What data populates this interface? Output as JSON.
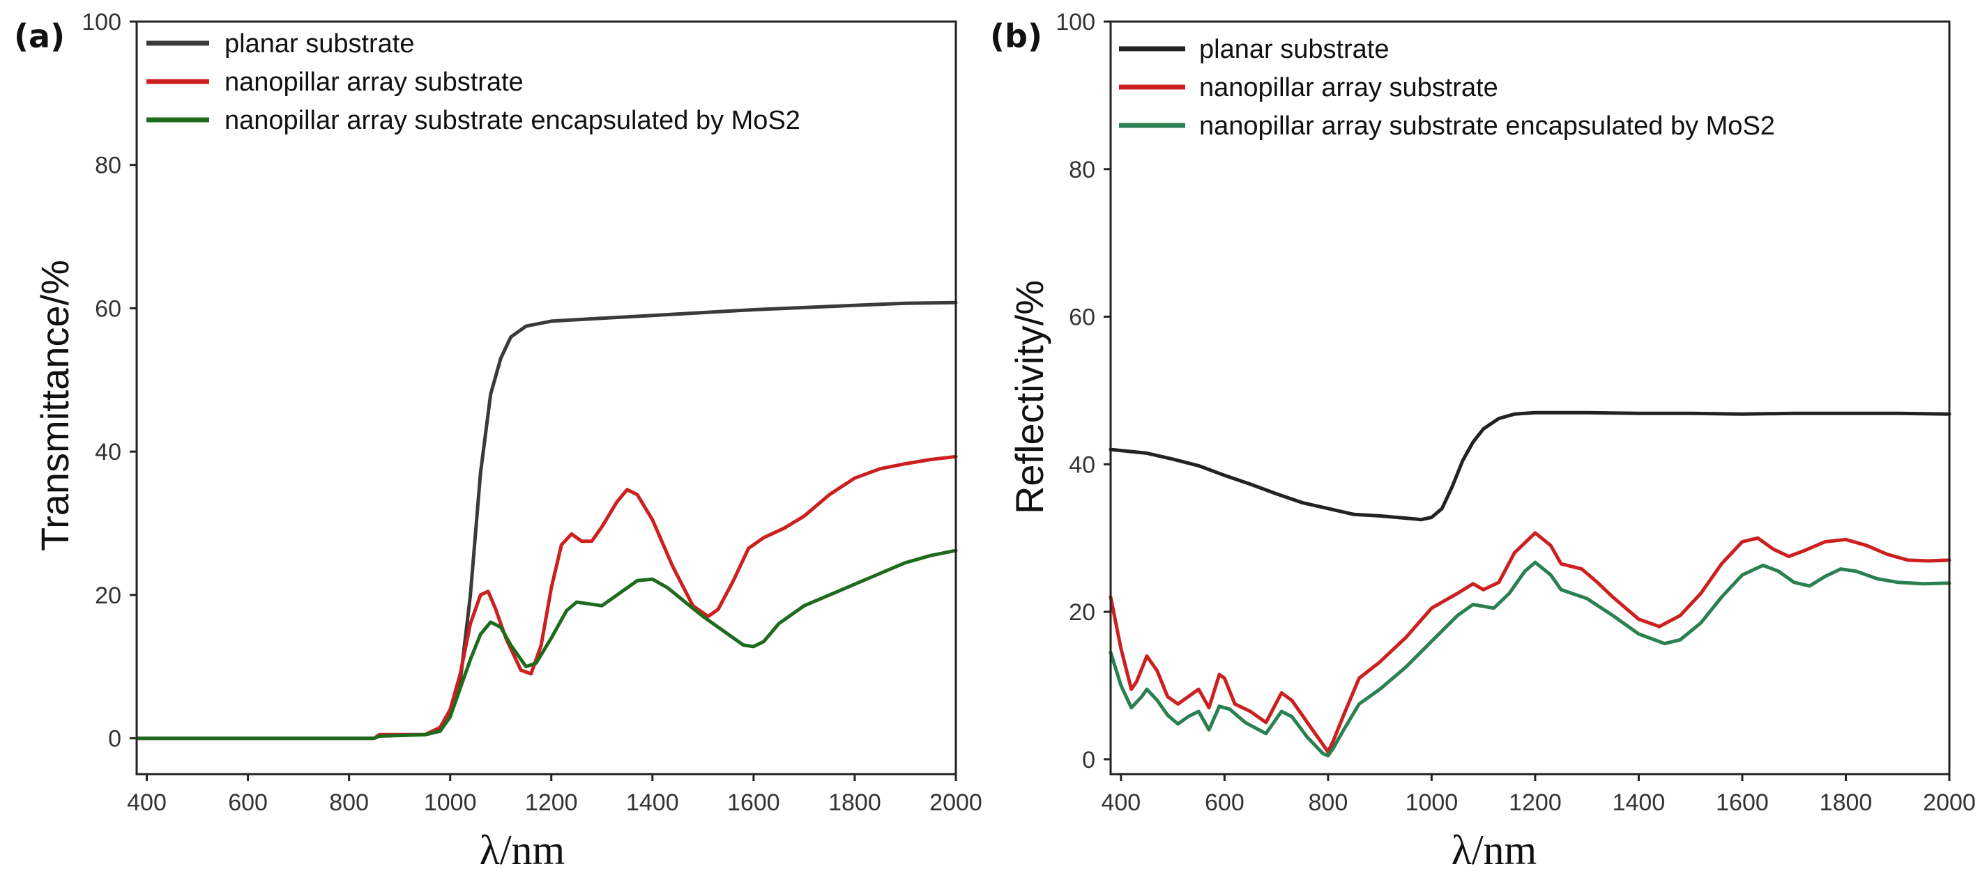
{
  "chart_data": [
    {
      "panel": "(a)",
      "type": "line",
      "xlabel": "λ/nm",
      "ylabel": "Transmittance/%",
      "xlim": [
        380,
        2000
      ],
      "ylim": [
        -5,
        100
      ],
      "xticks": [
        400,
        600,
        800,
        1000,
        1200,
        1400,
        1600,
        1800,
        2000
      ],
      "yticks": [
        0,
        20,
        40,
        60,
        80,
        100
      ],
      "legend_position": "top-left",
      "series": [
        {
          "name": "planar substrate",
          "color": "#3a3a3a",
          "points": [
            [
              380,
              0
            ],
            [
              850,
              0
            ],
            [
              860,
              0.5
            ],
            [
              950,
              0.5
            ],
            [
              980,
              1
            ],
            [
              1000,
              3
            ],
            [
              1020,
              8
            ],
            [
              1040,
              20
            ],
            [
              1060,
              37
            ],
            [
              1080,
              48
            ],
            [
              1100,
              53
            ],
            [
              1120,
              56
            ],
            [
              1150,
              57.5
            ],
            [
              1200,
              58.2
            ],
            [
              1300,
              58.6
            ],
            [
              1400,
              59
            ],
            [
              1500,
              59.4
            ],
            [
              1600,
              59.8
            ],
            [
              1700,
              60.1
            ],
            [
              1800,
              60.4
            ],
            [
              1900,
              60.7
            ],
            [
              2000,
              60.8
            ]
          ]
        },
        {
          "name": "nanopillar array substrate",
          "color": "#cc1f1f",
          "points": [
            [
              380,
              0
            ],
            [
              850,
              0
            ],
            [
              860,
              0.5
            ],
            [
              950,
              0.5
            ],
            [
              980,
              1.5
            ],
            [
              1000,
              4
            ],
            [
              1020,
              9
            ],
            [
              1040,
              16
            ],
            [
              1060,
              20
            ],
            [
              1075,
              20.5
            ],
            [
              1090,
              18
            ],
            [
              1110,
              14
            ],
            [
              1140,
              9.5
            ],
            [
              1160,
              9
            ],
            [
              1180,
              13
            ],
            [
              1200,
              21
            ],
            [
              1220,
              27
            ],
            [
              1240,
              28.5
            ],
            [
              1260,
              27.5
            ],
            [
              1280,
              27.5
            ],
            [
              1300,
              29.5
            ],
            [
              1330,
              33
            ],
            [
              1350,
              34.7
            ],
            [
              1370,
              34
            ],
            [
              1400,
              30.5
            ],
            [
              1440,
              24
            ],
            [
              1480,
              18.5
            ],
            [
              1510,
              17
            ],
            [
              1530,
              18
            ],
            [
              1560,
              22
            ],
            [
              1590,
              26.5
            ],
            [
              1620,
              28
            ],
            [
              1660,
              29.3
            ],
            [
              1700,
              31
            ],
            [
              1750,
              34
            ],
            [
              1800,
              36.3
            ],
            [
              1850,
              37.6
            ],
            [
              1900,
              38.3
            ],
            [
              1950,
              38.9
            ],
            [
              2000,
              39.3
            ]
          ]
        },
        {
          "name": "nanopillar array substrate encapsulated by MoS2",
          "color": "#1e6b1e",
          "points": [
            [
              380,
              0
            ],
            [
              850,
              0
            ],
            [
              860,
              0.3
            ],
            [
              950,
              0.5
            ],
            [
              980,
              1
            ],
            [
              1000,
              3
            ],
            [
              1020,
              7
            ],
            [
              1040,
              11
            ],
            [
              1060,
              14.5
            ],
            [
              1080,
              16.2
            ],
            [
              1100,
              15.5
            ],
            [
              1120,
              13
            ],
            [
              1150,
              10
            ],
            [
              1170,
              10.5
            ],
            [
              1200,
              14
            ],
            [
              1230,
              17.8
            ],
            [
              1250,
              19
            ],
            [
              1270,
              18.8
            ],
            [
              1300,
              18.5
            ],
            [
              1330,
              20
            ],
            [
              1370,
              22
            ],
            [
              1400,
              22.2
            ],
            [
              1430,
              21
            ],
            [
              1470,
              18.7
            ],
            [
              1500,
              17
            ],
            [
              1540,
              15
            ],
            [
              1580,
              13
            ],
            [
              1600,
              12.8
            ],
            [
              1620,
              13.5
            ],
            [
              1650,
              16
            ],
            [
              1700,
              18.5
            ],
            [
              1750,
              20
            ],
            [
              1800,
              21.5
            ],
            [
              1850,
              23
            ],
            [
              1900,
              24.5
            ],
            [
              1950,
              25.5
            ],
            [
              2000,
              26.2
            ]
          ]
        }
      ]
    },
    {
      "panel": "(b)",
      "type": "line",
      "xlabel": "λ/nm",
      "ylabel": "Reflectivity/%",
      "xlim": [
        380,
        2000
      ],
      "ylim": [
        -2,
        100
      ],
      "xticks": [
        400,
        600,
        800,
        1000,
        1200,
        1400,
        1600,
        1800,
        2000
      ],
      "yticks": [
        0,
        20,
        40,
        60,
        80,
        100
      ],
      "legend_position": "top-left",
      "series": [
        {
          "name": "planar substrate",
          "color": "#222222",
          "points": [
            [
              380,
              42
            ],
            [
              450,
              41.5
            ],
            [
              500,
              40.7
            ],
            [
              550,
              39.8
            ],
            [
              600,
              38.5
            ],
            [
              650,
              37.3
            ],
            [
              700,
              36
            ],
            [
              750,
              34.8
            ],
            [
              800,
              34
            ],
            [
              850,
              33.2
            ],
            [
              900,
              33
            ],
            [
              950,
              32.7
            ],
            [
              980,
              32.5
            ],
            [
              1000,
              32.8
            ],
            [
              1020,
              34
            ],
            [
              1040,
              37
            ],
            [
              1060,
              40.5
            ],
            [
              1080,
              43
            ],
            [
              1100,
              44.8
            ],
            [
              1130,
              46.2
            ],
            [
              1160,
              46.8
            ],
            [
              1200,
              47
            ],
            [
              1300,
              47
            ],
            [
              1400,
              46.9
            ],
            [
              1500,
              46.9
            ],
            [
              1600,
              46.8
            ],
            [
              1700,
              46.9
            ],
            [
              1800,
              46.9
            ],
            [
              1900,
              46.9
            ],
            [
              2000,
              46.8
            ]
          ]
        },
        {
          "name": "nanopillar array substrate",
          "color": "#cc1f1f",
          "points": [
            [
              380,
              22
            ],
            [
              400,
              15
            ],
            [
              420,
              9.5
            ],
            [
              430,
              10.5
            ],
            [
              450,
              14
            ],
            [
              470,
              12
            ],
            [
              490,
              8.5
            ],
            [
              510,
              7.5
            ],
            [
              530,
              8.5
            ],
            [
              550,
              9.5
            ],
            [
              570,
              7
            ],
            [
              590,
              11.5
            ],
            [
              600,
              11
            ],
            [
              620,
              7.5
            ],
            [
              650,
              6.5
            ],
            [
              680,
              5
            ],
            [
              710,
              9
            ],
            [
              730,
              8
            ],
            [
              760,
              5
            ],
            [
              790,
              2
            ],
            [
              800,
              1
            ],
            [
              810,
              2.5
            ],
            [
              830,
              6
            ],
            [
              860,
              11
            ],
            [
              900,
              13.2
            ],
            [
              950,
              16.5
            ],
            [
              1000,
              20.5
            ],
            [
              1050,
              22.5
            ],
            [
              1080,
              23.8
            ],
            [
              1100,
              23
            ],
            [
              1130,
              24
            ],
            [
              1160,
              28
            ],
            [
              1200,
              30.7
            ],
            [
              1230,
              29
            ],
            [
              1250,
              26.5
            ],
            [
              1290,
              25.8
            ],
            [
              1320,
              24
            ],
            [
              1350,
              22
            ],
            [
              1400,
              19
            ],
            [
              1440,
              18
            ],
            [
              1480,
              19.5
            ],
            [
              1520,
              22.5
            ],
            [
              1560,
              26.5
            ],
            [
              1600,
              29.5
            ],
            [
              1630,
              30
            ],
            [
              1660,
              28.5
            ],
            [
              1690,
              27.5
            ],
            [
              1720,
              28.3
            ],
            [
              1760,
              29.5
            ],
            [
              1800,
              29.8
            ],
            [
              1840,
              29
            ],
            [
              1880,
              27.8
            ],
            [
              1920,
              27
            ],
            [
              1960,
              26.9
            ],
            [
              2000,
              27
            ]
          ]
        },
        {
          "name": "nanopillar array substrate encapsulated by MoS2",
          "color": "#2a8050",
          "points": [
            [
              380,
              14.5
            ],
            [
              400,
              10
            ],
            [
              420,
              7
            ],
            [
              440,
              8.5
            ],
            [
              450,
              9.5
            ],
            [
              470,
              8
            ],
            [
              490,
              6
            ],
            [
              510,
              4.8
            ],
            [
              530,
              5.8
            ],
            [
              550,
              6.5
            ],
            [
              570,
              4
            ],
            [
              590,
              7.2
            ],
            [
              610,
              6.8
            ],
            [
              640,
              5
            ],
            [
              680,
              3.5
            ],
            [
              710,
              6.5
            ],
            [
              730,
              5.8
            ],
            [
              760,
              3
            ],
            [
              790,
              0.8
            ],
            [
              800,
              0.5
            ],
            [
              810,
              1.5
            ],
            [
              830,
              4
            ],
            [
              860,
              7.5
            ],
            [
              900,
              9.5
            ],
            [
              950,
              12.5
            ],
            [
              1000,
              16
            ],
            [
              1050,
              19.5
            ],
            [
              1080,
              21
            ],
            [
              1120,
              20.5
            ],
            [
              1150,
              22.5
            ],
            [
              1180,
              25.5
            ],
            [
              1200,
              26.7
            ],
            [
              1230,
              25
            ],
            [
              1250,
              23
            ],
            [
              1300,
              21.8
            ],
            [
              1350,
              19.5
            ],
            [
              1400,
              17
            ],
            [
              1450,
              15.7
            ],
            [
              1480,
              16.2
            ],
            [
              1520,
              18.5
            ],
            [
              1560,
              22
            ],
            [
              1600,
              25
            ],
            [
              1640,
              26.3
            ],
            [
              1670,
              25.5
            ],
            [
              1700,
              24
            ],
            [
              1730,
              23.5
            ],
            [
              1760,
              24.8
            ],
            [
              1790,
              25.8
            ],
            [
              1820,
              25.5
            ],
            [
              1860,
              24.5
            ],
            [
              1900,
              24
            ],
            [
              1950,
              23.8
            ],
            [
              2000,
              23.9
            ]
          ]
        }
      ]
    }
  ]
}
